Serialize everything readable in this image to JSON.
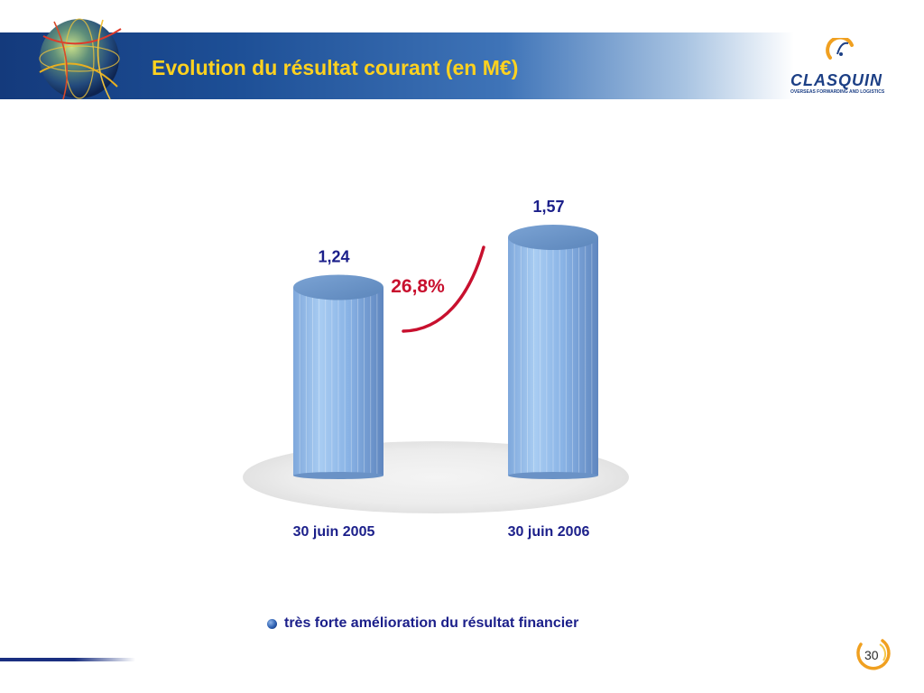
{
  "slide": {
    "title": "Evolution du résultat courant (en M€)",
    "footnote": "très forte amélioration du résultat financier",
    "page_number": "30"
  },
  "logo": {
    "brand": "CLASQUIN",
    "tagline": "OVERSEAS FORWARDING AND LOGISTICS"
  },
  "colors": {
    "title": "#ffd21f",
    "header_blue": "#1d4f96",
    "bar_fill": "#8fb8e8",
    "label_blue": "#1b1f8a",
    "growth_red": "#c8102e"
  },
  "chart_data": {
    "type": "bar",
    "style": "3d-cylinder",
    "categories": [
      "30 juin 2005",
      "30 juin 2006"
    ],
    "values": [
      1.24,
      1.57
    ],
    "value_labels": [
      "1,24",
      "1,57"
    ],
    "annotation": "26,8%",
    "ylim": [
      0,
      1.57
    ],
    "grid": false
  }
}
